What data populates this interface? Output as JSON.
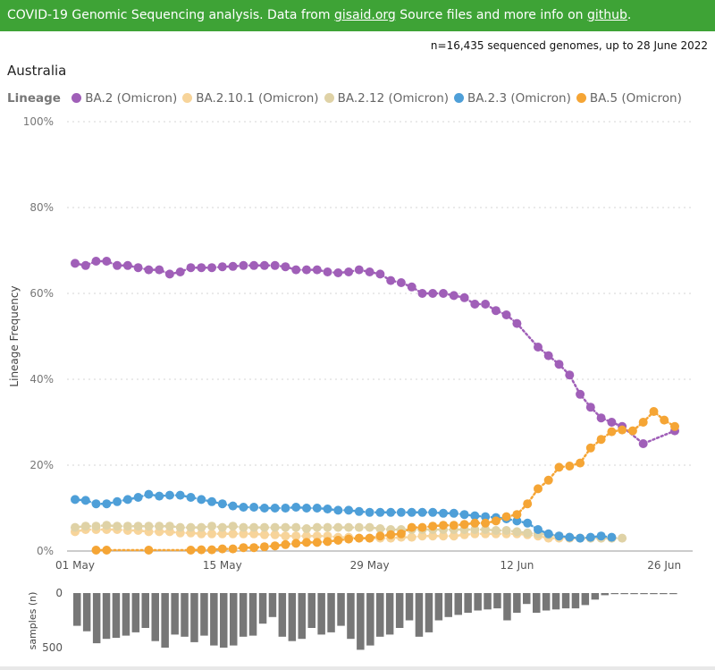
{
  "header": {
    "text_before": "COVID-19 Genomic Sequencing analysis. Data from ",
    "link1": "gisaid.org",
    "text_middle": " Source files and more info on ",
    "link2": "github",
    "text_after": ".",
    "background": "#3ea336"
  },
  "summary": "n=16,435 sequenced genomes, up to 28 June 2022",
  "region": "Australia",
  "legend_title": "Lineage",
  "chart_data": {
    "type": "line",
    "x_ticks": [
      {
        "day": 1,
        "label": "01 May"
      },
      {
        "day": 15,
        "label": "15 May"
      },
      {
        "day": 29,
        "label": "29 May"
      },
      {
        "day": 43,
        "label": "12 Jun"
      },
      {
        "day": 57,
        "label": "26 Jun"
      }
    ],
    "y_ticks": [
      "0%",
      "20%",
      "40%",
      "60%",
      "80%",
      "100%"
    ],
    "ylabel": "Lineage Frequency",
    "ylim": [
      0,
      100
    ],
    "xlim": [
      1,
      58
    ],
    "series": [
      {
        "name": "BA.2 (Omicron)",
        "color": "#a05fb8",
        "points": [
          [
            1,
            67
          ],
          [
            2,
            66.5
          ],
          [
            3,
            67.5
          ],
          [
            4,
            67.5
          ],
          [
            5,
            66.5
          ],
          [
            6,
            66.5
          ],
          [
            7,
            66
          ],
          [
            8,
            65.5
          ],
          [
            9,
            65.5
          ],
          [
            10,
            64.5
          ],
          [
            11,
            65
          ],
          [
            12,
            66
          ],
          [
            13,
            66
          ],
          [
            14,
            66
          ],
          [
            15,
            66.2
          ],
          [
            16,
            66.3
          ],
          [
            17,
            66.5
          ],
          [
            18,
            66.5
          ],
          [
            19,
            66.5
          ],
          [
            20,
            66.5
          ],
          [
            21,
            66.2
          ],
          [
            22,
            65.5
          ],
          [
            23,
            65.5
          ],
          [
            24,
            65.5
          ],
          [
            25,
            65
          ],
          [
            26,
            64.8
          ],
          [
            27,
            65
          ],
          [
            28,
            65.5
          ],
          [
            29,
            65
          ],
          [
            30,
            64.5
          ],
          [
            31,
            63
          ],
          [
            32,
            62.5
          ],
          [
            33,
            61.5
          ],
          [
            34,
            60
          ],
          [
            35,
            60
          ],
          [
            36,
            60
          ],
          [
            37,
            59.5
          ],
          [
            38,
            59
          ],
          [
            39,
            57.5
          ],
          [
            40,
            57.5
          ],
          [
            41,
            56
          ],
          [
            42,
            55
          ],
          [
            43,
            53
          ],
          [
            45,
            47.5
          ],
          [
            46,
            45.5
          ],
          [
            47,
            43.5
          ],
          [
            48,
            41
          ],
          [
            49,
            36.5
          ],
          [
            50,
            33.5
          ],
          [
            51,
            31
          ],
          [
            52,
            30
          ],
          [
            53,
            29
          ],
          [
            55,
            25
          ],
          [
            58,
            28
          ]
        ]
      },
      {
        "name": "BA.2.10.1 (Omicron)",
        "color": "#f7d49a",
        "points": [
          [
            1,
            4.5
          ],
          [
            2,
            5
          ],
          [
            3,
            5
          ],
          [
            4,
            5
          ],
          [
            5,
            5
          ],
          [
            6,
            4.8
          ],
          [
            7,
            4.8
          ],
          [
            8,
            4.5
          ],
          [
            9,
            4.5
          ],
          [
            10,
            4.5
          ],
          [
            11,
            4.2
          ],
          [
            12,
            4.2
          ],
          [
            13,
            4
          ],
          [
            14,
            4
          ],
          [
            15,
            4
          ],
          [
            16,
            4
          ],
          [
            17,
            4
          ],
          [
            18,
            4
          ],
          [
            19,
            3.8
          ],
          [
            20,
            3.8
          ],
          [
            21,
            3.5
          ],
          [
            22,
            3.5
          ],
          [
            23,
            3.5
          ],
          [
            24,
            3.5
          ],
          [
            25,
            3.5
          ],
          [
            26,
            3.2
          ],
          [
            27,
            3.2
          ],
          [
            28,
            3
          ],
          [
            29,
            3
          ],
          [
            30,
            3
          ],
          [
            31,
            3
          ],
          [
            32,
            3.2
          ],
          [
            33,
            3.2
          ],
          [
            34,
            3.5
          ],
          [
            35,
            3.5
          ],
          [
            36,
            3.5
          ],
          [
            37,
            3.5
          ],
          [
            38,
            3.8
          ],
          [
            39,
            4
          ],
          [
            40,
            4
          ],
          [
            41,
            4
          ],
          [
            42,
            4
          ],
          [
            43,
            4
          ],
          [
            44,
            3.8
          ],
          [
            45,
            3.5
          ],
          [
            46,
            3
          ],
          [
            47,
            3
          ],
          [
            48,
            3
          ],
          [
            49,
            3
          ],
          [
            50,
            3
          ],
          [
            51,
            3
          ],
          [
            52,
            3
          ]
        ]
      },
      {
        "name": "BA.2.12 (Omicron)",
        "color": "#dfd2a6",
        "points": [
          [
            1,
            5.5
          ],
          [
            2,
            5.8
          ],
          [
            3,
            5.8
          ],
          [
            4,
            6
          ],
          [
            5,
            5.8
          ],
          [
            6,
            5.8
          ],
          [
            7,
            5.8
          ],
          [
            8,
            5.8
          ],
          [
            9,
            5.8
          ],
          [
            10,
            5.8
          ],
          [
            11,
            5.5
          ],
          [
            12,
            5.5
          ],
          [
            13,
            5.5
          ],
          [
            14,
            5.8
          ],
          [
            15,
            5.5
          ],
          [
            16,
            5.8
          ],
          [
            17,
            5.5
          ],
          [
            18,
            5.5
          ],
          [
            19,
            5.5
          ],
          [
            20,
            5.5
          ],
          [
            21,
            5.5
          ],
          [
            22,
            5.5
          ],
          [
            23,
            5.2
          ],
          [
            24,
            5.5
          ],
          [
            25,
            5.5
          ],
          [
            26,
            5.5
          ],
          [
            27,
            5.5
          ],
          [
            28,
            5.5
          ],
          [
            29,
            5.5
          ],
          [
            30,
            5.2
          ],
          [
            31,
            5
          ],
          [
            32,
            5
          ],
          [
            33,
            5
          ],
          [
            34,
            5
          ],
          [
            35,
            5
          ],
          [
            36,
            5
          ],
          [
            37,
            5
          ],
          [
            38,
            5
          ],
          [
            39,
            5
          ],
          [
            40,
            5
          ],
          [
            41,
            4.8
          ],
          [
            42,
            4.8
          ],
          [
            43,
            4.5
          ],
          [
            44,
            4.2
          ],
          [
            45,
            4
          ],
          [
            46,
            3.8
          ],
          [
            47,
            3.5
          ],
          [
            48,
            3.2
          ],
          [
            49,
            3
          ],
          [
            50,
            3
          ],
          [
            51,
            3
          ],
          [
            52,
            3
          ],
          [
            53,
            3
          ]
        ]
      },
      {
        "name": "BA.2.3 (Omicron)",
        "color": "#4e9fd8",
        "points": [
          [
            1,
            12
          ],
          [
            2,
            11.8
          ],
          [
            3,
            11
          ],
          [
            4,
            11
          ],
          [
            5,
            11.5
          ],
          [
            6,
            12
          ],
          [
            7,
            12.5
          ],
          [
            8,
            13.2
          ],
          [
            9,
            12.8
          ],
          [
            10,
            13
          ],
          [
            11,
            13
          ],
          [
            12,
            12.5
          ],
          [
            13,
            12
          ],
          [
            14,
            11.5
          ],
          [
            15,
            11
          ],
          [
            16,
            10.5
          ],
          [
            17,
            10.2
          ],
          [
            18,
            10.2
          ],
          [
            19,
            10
          ],
          [
            20,
            10
          ],
          [
            21,
            10
          ],
          [
            22,
            10.2
          ],
          [
            23,
            10
          ],
          [
            24,
            10
          ],
          [
            25,
            9.8
          ],
          [
            26,
            9.5
          ],
          [
            27,
            9.5
          ],
          [
            28,
            9.2
          ],
          [
            29,
            9
          ],
          [
            30,
            9
          ],
          [
            31,
            9
          ],
          [
            32,
            9
          ],
          [
            33,
            9
          ],
          [
            34,
            9
          ],
          [
            35,
            9
          ],
          [
            36,
            8.8
          ],
          [
            37,
            8.8
          ],
          [
            38,
            8.5
          ],
          [
            39,
            8.2
          ],
          [
            40,
            8
          ],
          [
            41,
            7.8
          ],
          [
            42,
            7.5
          ],
          [
            43,
            7
          ],
          [
            44,
            6.5
          ],
          [
            45,
            5
          ],
          [
            46,
            4
          ],
          [
            47,
            3.5
          ],
          [
            48,
            3.2
          ],
          [
            49,
            3
          ],
          [
            50,
            3.2
          ],
          [
            51,
            3.5
          ],
          [
            52,
            3.2
          ]
        ]
      },
      {
        "name": "BA.5 (Omicron)",
        "color": "#f5a535",
        "points": [
          [
            3,
            0.2
          ],
          [
            4,
            0.2
          ],
          [
            8,
            0.2
          ],
          [
            12,
            0.2
          ],
          [
            13,
            0.3
          ],
          [
            14,
            0.3
          ],
          [
            15,
            0.5
          ],
          [
            16,
            0.5
          ],
          [
            17,
            0.8
          ],
          [
            18,
            0.8
          ],
          [
            19,
            1
          ],
          [
            20,
            1.2
          ],
          [
            21,
            1.5
          ],
          [
            22,
            1.8
          ],
          [
            23,
            2
          ],
          [
            24,
            2
          ],
          [
            25,
            2.2
          ],
          [
            26,
            2.5
          ],
          [
            27,
            2.8
          ],
          [
            28,
            3
          ],
          [
            29,
            3
          ],
          [
            30,
            3.5
          ],
          [
            31,
            3.8
          ],
          [
            32,
            4
          ],
          [
            33,
            5.5
          ],
          [
            34,
            5.5
          ],
          [
            35,
            5.8
          ],
          [
            36,
            6
          ],
          [
            37,
            6
          ],
          [
            38,
            6.2
          ],
          [
            39,
            6.5
          ],
          [
            40,
            6.5
          ],
          [
            41,
            7
          ],
          [
            42,
            8
          ],
          [
            43,
            8.5
          ],
          [
            44,
            11
          ],
          [
            45,
            14.5
          ],
          [
            46,
            16.5
          ],
          [
            47,
            19.5
          ],
          [
            48,
            19.8
          ],
          [
            49,
            20.5
          ],
          [
            50,
            24
          ],
          [
            51,
            26
          ],
          [
            52,
            27.8
          ],
          [
            53,
            28.2
          ],
          [
            54,
            28
          ],
          [
            55,
            30
          ],
          [
            56,
            32.5
          ],
          [
            57,
            30.5
          ],
          [
            58,
            29
          ]
        ]
      }
    ],
    "samples": {
      "ylabel": "samples (n)",
      "ticks": [
        "0",
        "500"
      ],
      "ylim": [
        0,
        500
      ],
      "color": "#777777",
      "values": [
        300,
        350,
        460,
        420,
        410,
        390,
        360,
        320,
        440,
        500,
        380,
        400,
        450,
        390,
        480,
        500,
        480,
        400,
        390,
        280,
        220,
        400,
        440,
        420,
        320,
        380,
        360,
        300,
        420,
        520,
        480,
        400,
        380,
        320,
        250,
        400,
        360,
        250,
        220,
        200,
        180,
        160,
        150,
        140,
        250,
        180,
        100,
        180,
        160,
        150,
        140,
        140,
        110,
        60,
        20,
        10,
        10,
        10,
        10,
        10,
        10,
        10
      ]
    }
  }
}
